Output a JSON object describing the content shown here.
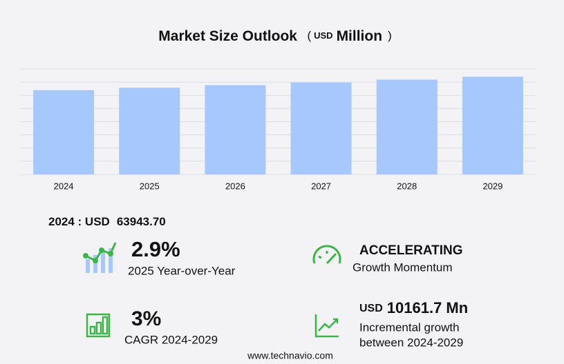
{
  "chart_data": {
    "type": "bar",
    "title": "Market Size Outlook",
    "title_currency": "USD",
    "title_unit": "Million",
    "categories": [
      "2024",
      "2025",
      "2026",
      "2027",
      "2028",
      "2029"
    ],
    "values": [
      63943.7,
      65800,
      67700,
      69700,
      71900,
      74105.4
    ],
    "color": "#a7c8fd",
    "ylim": [
      0,
      80000
    ],
    "yticks": [
      0,
      10000,
      20000,
      30000,
      40000,
      50000,
      60000,
      70000,
      80000
    ],
    "grid": true
  },
  "summary": {
    "base": "2024 : USD",
    "base_value": "63943.70",
    "growth_value": "2.9%",
    "growth_label": "2025 Year-over-Year",
    "momentum_value": "ACCELERATING",
    "momentum_label": "Growth Momentum",
    "cagr_value": "3%",
    "cagr_label": "CAGR 2024-2029",
    "incremental_currency": "USD",
    "incremental_value": "10161.7 Mn",
    "incremental_label_1": "Incremental growth",
    "incremental_label_2": "between 2024-2029"
  },
  "footer": "www.technavio.com"
}
